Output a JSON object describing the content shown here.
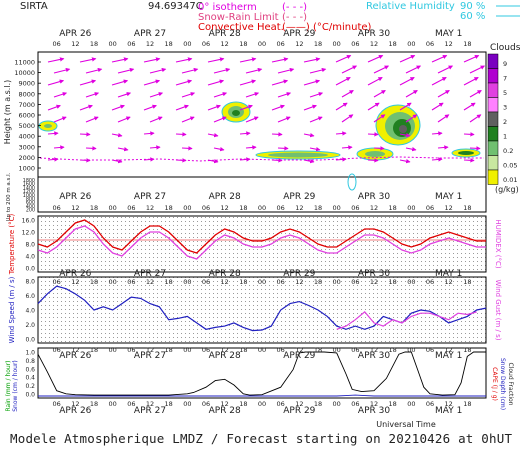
{
  "header": {
    "site": "SIRTA",
    "code": "94.69347C",
    "legend_isotherm": "0° isotherm",
    "legend_isotherm_symbol": "(- - -)",
    "legend_snowrain": "Snow-Rain Limit",
    "legend_snowrain_symbol": "(- - -)",
    "legend_convective": "Convective Heat.",
    "legend_convective_symbol": "(——)",
    "legend_convective_unit": "(°C/minute)",
    "rh_label": "Relative Humidity",
    "rh_90": "90 %",
    "rh_60": "60 %"
  },
  "colors": {
    "magenta": "#e000e0",
    "red": "#e00000",
    "blue": "#2020c0",
    "green": "#00a000",
    "cyan": "#00d0e0",
    "frame": "#000000"
  },
  "days": [
    "APR 26",
    "APR 27",
    "APR 28",
    "APR 29",
    "APR 30",
    "MAY  1"
  ],
  "hours": [
    "06",
    "12",
    "18",
    "00"
  ],
  "clouds": {
    "title": "Clouds",
    "unit": "(g/kg)",
    "levels": [
      "9",
      "7",
      "5",
      "3",
      "2",
      "1",
      "0.2",
      "0.05",
      "0.01"
    ],
    "colors": [
      "#7a00c0",
      "#b000d0",
      "#e040e0",
      "#ff80ff",
      "#606060",
      "#208020",
      "#70c070",
      "#c8e8a0",
      "#f0f000"
    ]
  },
  "panel_top": {
    "ylabel": "Height (m a.s.l.)",
    "ylabel2": "Up to 200 m a.s.l.",
    "yticks_upper": [
      "11000",
      "10000",
      "9000",
      "8000",
      "7000",
      "6000",
      "5000",
      "4000",
      "3000",
      "2000",
      "1000"
    ],
    "yticks_lower": [
      "1800",
      "1600",
      "1400",
      "1200",
      "1000",
      "800",
      "600",
      "400",
      "200"
    ]
  },
  "panel_temp": {
    "ylabel": "Temperature (°C)",
    "ylabel_right": "HUMIDEX (°C)",
    "yticks": [
      "16.0",
      "12.0",
      "8.0",
      "4.0",
      "0.0"
    ]
  },
  "panel_wind": {
    "ylabel": "Wind Speed (m / s)",
    "ylabel_right": "Wind Gust (m / s)",
    "yticks": [
      "8.0",
      "6.0",
      "4.0",
      "2.0",
      "0.0"
    ]
  },
  "panel_rain": {
    "ylabel": "Rain (mm / hour)",
    "ylabel_b": "Snow (cm / hour)",
    "yticks": [
      "1.0",
      "0.8",
      "0.6",
      "0.4",
      "0.2",
      "0.0"
    ],
    "ylabel_right": "CAPE (J / g)",
    "ylabel_right_b": "Snow Depth (cm)",
    "ylabel_right_c": "Cloud Fraction"
  },
  "xaxis_title": "Universal Time",
  "footer": "Modele Atmospherique LMDZ / Forecast starting on 20210426 at 0hUT",
  "chart_data": [
    {
      "type": "line",
      "title": "Temperature",
      "x_unit": "hours since 2021-04-26 00 UT",
      "ylim": [
        0,
        16
      ],
      "series": [
        {
          "name": "Temperature",
          "color": "#e00000",
          "x": [
            0,
            3,
            6,
            9,
            12,
            15,
            18,
            21,
            24,
            27,
            30,
            33,
            36,
            39,
            42,
            45,
            48,
            51,
            54,
            57,
            60,
            63,
            66,
            69,
            72,
            75,
            78,
            81,
            84,
            87,
            90,
            93,
            96,
            99,
            102,
            105,
            108,
            111,
            114,
            117,
            120,
            123,
            126,
            129,
            132,
            135,
            138,
            141,
            144
          ],
          "values": [
            8,
            7,
            9,
            12,
            15,
            16,
            14,
            10,
            7,
            6,
            9,
            12,
            14,
            14,
            12,
            9,
            6,
            5,
            8,
            11,
            13,
            12,
            10,
            9,
            9,
            10,
            12,
            13,
            12,
            10,
            8,
            7,
            7,
            9,
            11,
            13,
            13,
            12,
            10,
            8,
            7,
            8,
            10,
            11,
            12,
            11,
            10,
            9,
            9
          ]
        },
        {
          "name": "Humidex",
          "color": "#e040e0",
          "x": [
            0,
            3,
            6,
            9,
            12,
            15,
            18,
            21,
            24,
            27,
            30,
            33,
            36,
            39,
            42,
            45,
            48,
            51,
            54,
            57,
            60,
            63,
            66,
            69,
            72,
            75,
            78,
            81,
            84,
            87,
            90,
            93,
            96,
            99,
            102,
            105,
            108,
            111,
            114,
            117,
            120,
            123,
            126,
            129,
            132,
            135,
            138,
            141,
            144
          ],
          "values": [
            6,
            5,
            7,
            10,
            13,
            14,
            12,
            8,
            5,
            4,
            7,
            10,
            12,
            12,
            10,
            7,
            4,
            3,
            6,
            9,
            11,
            10,
            8,
            7,
            7,
            8,
            10,
            11,
            10,
            8,
            6,
            5,
            5,
            7,
            9,
            11,
            11,
            10,
            8,
            6,
            5,
            6,
            8,
            9,
            10,
            9,
            8,
            7,
            7
          ]
        }
      ]
    },
    {
      "type": "line",
      "title": "Wind Speed",
      "x_unit": "hours since 2021-04-26 00 UT",
      "ylim": [
        0,
        9
      ],
      "series": [
        {
          "name": "Wind Speed",
          "color": "#2020c0",
          "x": [
            0,
            3,
            6,
            9,
            12,
            15,
            18,
            21,
            24,
            27,
            30,
            33,
            36,
            39,
            42,
            45,
            48,
            51,
            54,
            57,
            60,
            63,
            66,
            69,
            72,
            75,
            78,
            81,
            84,
            87,
            90,
            93,
            96,
            99,
            102,
            105,
            108,
            111,
            114,
            117,
            120,
            123,
            126,
            129,
            132,
            135,
            138,
            141,
            144
          ],
          "values": [
            5.5,
            7,
            8.2,
            7.8,
            7,
            6,
            4.5,
            5,
            4.5,
            5.5,
            6.5,
            6.3,
            5.5,
            5,
            3,
            3.2,
            3.5,
            2.5,
            1.5,
            1.8,
            2,
            2.5,
            1.8,
            1.3,
            1.4,
            2,
            4.5,
            5.5,
            5.8,
            5.2,
            4.5,
            3.5,
            2,
            1.5,
            2,
            1.5,
            2,
            3.5,
            3,
            2.5,
            4,
            4.5,
            4.3,
            3.5,
            2.5,
            3,
            3.5,
            4.5,
            4.8
          ]
        },
        {
          "name": "Wind Gust",
          "color": "#e040e0",
          "x": [
            96,
            99,
            102,
            105,
            108,
            111,
            114,
            117,
            120,
            123,
            126,
            129,
            132,
            135,
            138,
            141
          ],
          "values": [
            1.5,
            2,
            3,
            4.2,
            2.5,
            2,
            3,
            2.5,
            3.5,
            4,
            4,
            3.5,
            3,
            4,
            3.8,
            4.2
          ]
        }
      ]
    },
    {
      "type": "line",
      "title": "Rain / Cloud Fraction",
      "x_unit": "hours since 2021-04-26 00 UT",
      "ylim": [
        0,
        1
      ],
      "series": [
        {
          "name": "Cloud Fraction",
          "color": "#000000",
          "x": [
            0,
            3,
            6,
            9,
            12,
            18,
            24,
            30,
            36,
            42,
            48,
            50,
            54,
            57,
            60,
            63,
            66,
            68,
            72,
            78,
            82,
            84,
            86,
            88,
            92,
            96,
            99,
            101,
            104,
            108,
            112,
            116,
            118,
            120,
            122,
            124,
            126,
            130,
            134,
            136,
            138,
            140,
            144
          ],
          "values": [
            0.95,
            0.55,
            0.12,
            0.05,
            0.03,
            0.02,
            0.02,
            0.02,
            0.02,
            0.02,
            0.05,
            0.08,
            0.2,
            0.35,
            0.38,
            0.25,
            0.05,
            0.02,
            0.03,
            0.2,
            0.6,
            0.98,
            1,
            1,
            1,
            0.98,
            0.5,
            0.15,
            0.1,
            0.12,
            0.4,
            0.95,
            1,
            1,
            0.6,
            0.2,
            0.05,
            0.02,
            0.03,
            0.3,
            0.9,
            1,
            1
          ]
        },
        {
          "name": "Rain",
          "color": "#2020c0",
          "x": [
            0,
            96,
            99,
            102,
            105,
            108,
            144
          ],
          "values": [
            0,
            0,
            0.01,
            0.02,
            0.01,
            0,
            0
          ]
        }
      ]
    }
  ]
}
